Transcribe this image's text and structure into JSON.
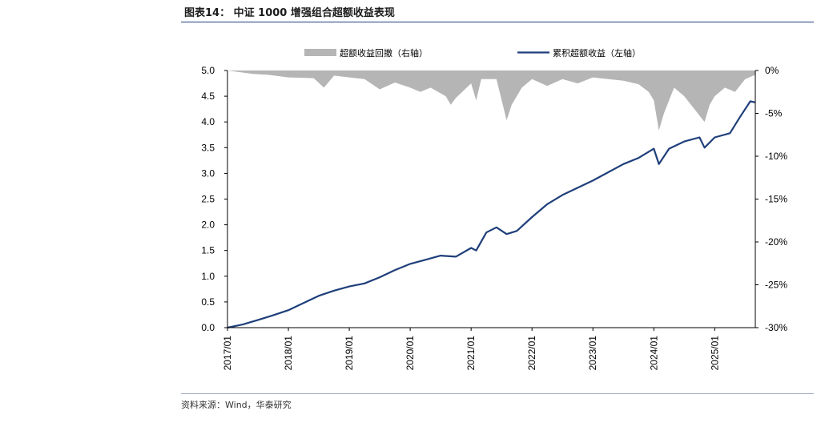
{
  "title": "图表14：  中证 1000 增强组合超额收益表现",
  "source": "资料来源：Wind，华泰研究",
  "colors": {
    "line": "#1f3f7a",
    "drawdown": "#b5b5b5",
    "rule": "#1f3f7a"
  },
  "chart_data": {
    "type": "line",
    "legend": [
      {
        "name": "超额收益回撤（右轴）",
        "kind": "area"
      },
      {
        "name": "累积超额收益（左轴）",
        "kind": "line"
      }
    ],
    "legend_position": "top",
    "x_ticks": [
      "2017/01",
      "2018/01",
      "2019/01",
      "2020/01",
      "2021/01",
      "2022/01",
      "2023/01",
      "2024/01",
      "2025/01"
    ],
    "x_range": [
      "2017-01",
      "2025-09"
    ],
    "y_left": {
      "ticks": [
        "0.0",
        "0.5",
        "1.0",
        "1.5",
        "2.0",
        "2.5",
        "3.0",
        "3.5",
        "4.0",
        "4.5",
        "5.0"
      ],
      "range": [
        0,
        5
      ]
    },
    "y_right": {
      "ticks": [
        "0%",
        "-5%",
        "-10%",
        "-15%",
        "-20%",
        "-25%",
        "-30%"
      ],
      "range": [
        -30,
        0
      ]
    },
    "series": [
      {
        "name": "累积超额收益（左轴）",
        "axis": "left",
        "points": [
          [
            "2017-01",
            0.0
          ],
          [
            "2017-04",
            0.06
          ],
          [
            "2017-07",
            0.15
          ],
          [
            "2017-10",
            0.24
          ],
          [
            "2018-01",
            0.34
          ],
          [
            "2018-04",
            0.48
          ],
          [
            "2018-07",
            0.62
          ],
          [
            "2018-10",
            0.72
          ],
          [
            "2019-01",
            0.8
          ],
          [
            "2019-04",
            0.86
          ],
          [
            "2019-07",
            0.98
          ],
          [
            "2019-10",
            1.12
          ],
          [
            "2020-01",
            1.24
          ],
          [
            "2020-04",
            1.32
          ],
          [
            "2020-07",
            1.4
          ],
          [
            "2020-10",
            1.38
          ],
          [
            "2021-01",
            1.55
          ],
          [
            "2021-02",
            1.5
          ],
          [
            "2021-04",
            1.85
          ],
          [
            "2021-06",
            1.95
          ],
          [
            "2021-08",
            1.82
          ],
          [
            "2021-10",
            1.88
          ],
          [
            "2022-01",
            2.15
          ],
          [
            "2022-04",
            2.4
          ],
          [
            "2022-07",
            2.58
          ],
          [
            "2022-10",
            2.72
          ],
          [
            "2023-01",
            2.86
          ],
          [
            "2023-04",
            3.02
          ],
          [
            "2023-07",
            3.18
          ],
          [
            "2023-10",
            3.3
          ],
          [
            "2024-01",
            3.48
          ],
          [
            "2024-02",
            3.18
          ],
          [
            "2024-04",
            3.48
          ],
          [
            "2024-07",
            3.62
          ],
          [
            "2024-10",
            3.7
          ],
          [
            "2024-11",
            3.5
          ],
          [
            "2025-01",
            3.7
          ],
          [
            "2025-04",
            3.78
          ],
          [
            "2025-06",
            4.1
          ],
          [
            "2025-08",
            4.4
          ],
          [
            "2025-09",
            4.38
          ]
        ]
      },
      {
        "name": "超额收益回撤（右轴）",
        "axis": "right",
        "points": [
          [
            "2017-01",
            0.0
          ],
          [
            "2017-06",
            -0.4
          ],
          [
            "2017-09",
            -0.5
          ],
          [
            "2018-01",
            -0.8
          ],
          [
            "2018-06",
            -0.9
          ],
          [
            "2018-08",
            -2.0
          ],
          [
            "2018-10",
            -0.6
          ],
          [
            "2019-01",
            -0.8
          ],
          [
            "2019-04",
            -1.0
          ],
          [
            "2019-07",
            -2.2
          ],
          [
            "2019-10",
            -1.4
          ],
          [
            "2020-01",
            -2.0
          ],
          [
            "2020-03",
            -2.5
          ],
          [
            "2020-05",
            -2.0
          ],
          [
            "2020-08",
            -3.0
          ],
          [
            "2020-09",
            -4.0
          ],
          [
            "2020-10",
            -3.2
          ],
          [
            "2021-01",
            -1.5
          ],
          [
            "2021-02",
            -3.5
          ],
          [
            "2021-03",
            -1.0
          ],
          [
            "2021-06",
            -1.0
          ],
          [
            "2021-08",
            -5.8
          ],
          [
            "2021-09",
            -4.0
          ],
          [
            "2021-11",
            -2.0
          ],
          [
            "2022-01",
            -1.0
          ],
          [
            "2022-04",
            -1.8
          ],
          [
            "2022-07",
            -1.0
          ],
          [
            "2022-10",
            -1.5
          ],
          [
            "2023-01",
            -0.8
          ],
          [
            "2023-04",
            -1.0
          ],
          [
            "2023-07",
            -1.2
          ],
          [
            "2023-10",
            -1.6
          ],
          [
            "2023-12",
            -2.5
          ],
          [
            "2024-01",
            -3.5
          ],
          [
            "2024-02",
            -7.0
          ],
          [
            "2024-03",
            -5.0
          ],
          [
            "2024-05",
            -2.0
          ],
          [
            "2024-07",
            -3.0
          ],
          [
            "2024-09",
            -4.5
          ],
          [
            "2024-11",
            -6.0
          ],
          [
            "2024-12",
            -4.0
          ],
          [
            "2025-01",
            -3.0
          ],
          [
            "2025-03",
            -2.0
          ],
          [
            "2025-05",
            -2.5
          ],
          [
            "2025-07",
            -1.0
          ],
          [
            "2025-09",
            -0.5
          ]
        ]
      }
    ]
  }
}
